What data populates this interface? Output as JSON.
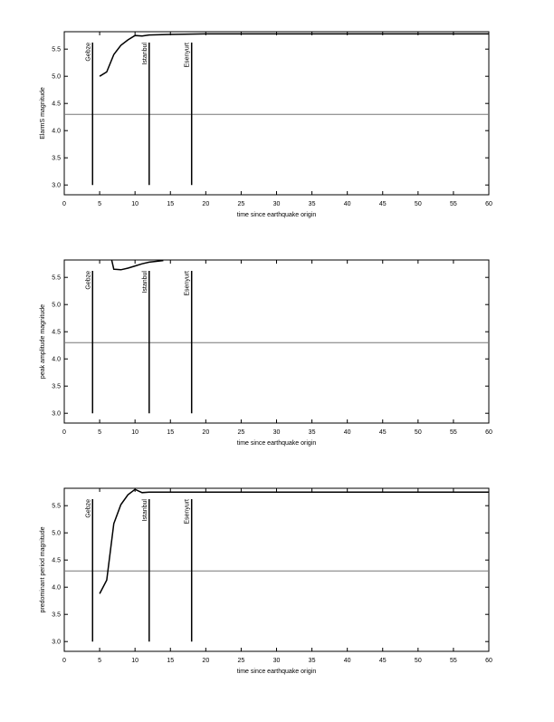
{
  "chart_data": [
    {
      "type": "line",
      "x_label": "time since earthquake origin",
      "y_label": "ElarmS magnitude",
      "xlim": [
        0,
        60
      ],
      "xticks": [
        0,
        5,
        10,
        15,
        20,
        25,
        30,
        35,
        40,
        45,
        50,
        55,
        60
      ],
      "ylim": [
        2.82,
        5.82
      ],
      "yticks": [
        {
          "value": 3,
          "label": "3.0"
        },
        3.5,
        {
          "value": 4,
          "label": "4.0"
        },
        4.5,
        {
          "value": 5,
          "label": "5.0"
        },
        5.5
      ],
      "hline": 4.3,
      "markers": [
        {
          "label": "Gebze",
          "x": 4,
          "ymin": 3,
          "ymax": 5.62
        },
        {
          "label": "Istanbul",
          "x": 12,
          "ymin": 3,
          "ymax": 5.62
        },
        {
          "label": "Esenyurt",
          "x": 18,
          "ymin": 3,
          "ymax": 5.62
        }
      ],
      "series": [
        {
          "color": "#000000",
          "x": [
            5,
            6,
            7,
            8,
            9,
            10,
            11,
            12,
            15,
            20,
            60
          ],
          "values": [
            5.0,
            5.08,
            5.4,
            5.57,
            5.67,
            5.75,
            5.74,
            5.76,
            5.77,
            5.78,
            5.78
          ]
        }
      ]
    },
    {
      "type": "line",
      "x_label": "time since earthquake origin",
      "y_label": "peak amplitude magnitude",
      "xlim": [
        0,
        60
      ],
      "xticks": [
        0,
        5,
        10,
        15,
        20,
        25,
        30,
        35,
        40,
        45,
        50,
        55,
        60
      ],
      "ylim": [
        2.82,
        5.82
      ],
      "yticks": [
        {
          "value": 3,
          "label": "3.0"
        },
        3.5,
        {
          "value": 4,
          "label": "4.0"
        },
        4.5,
        {
          "value": 5,
          "label": "5.0"
        },
        5.5
      ],
      "hline": 4.3,
      "markers": [
        {
          "label": "Gebze",
          "x": 4,
          "ymin": 3,
          "ymax": 5.62
        },
        {
          "label": "Istanbul",
          "x": 12,
          "ymin": 3,
          "ymax": 5.62
        },
        {
          "label": "Esenyurt",
          "x": 18,
          "ymin": 3,
          "ymax": 5.62
        }
      ],
      "series": [
        {
          "color": "#000000",
          "x": [
            6.7,
            7,
            8,
            9,
            10,
            11,
            12,
            14
          ],
          "values": [
            5.82,
            5.65,
            5.64,
            5.67,
            5.71,
            5.75,
            5.78,
            5.81
          ]
        }
      ]
    },
    {
      "type": "line",
      "x_label": "time since earthquake origin",
      "y_label": "predominant period magnitude",
      "xlim": [
        0,
        60
      ],
      "xticks": [
        0,
        5,
        10,
        15,
        20,
        25,
        30,
        35,
        40,
        45,
        50,
        55,
        60
      ],
      "ylim": [
        2.82,
        5.82
      ],
      "yticks": [
        {
          "value": 3,
          "label": "3.0"
        },
        3.5,
        {
          "value": 4,
          "label": "4.0"
        },
        4.5,
        {
          "value": 5,
          "label": "5.0"
        },
        5.5
      ],
      "hline": 4.3,
      "markers": [
        {
          "label": "Gebze",
          "x": 4,
          "ymin": 3,
          "ymax": 5.62
        },
        {
          "label": "Istanbul",
          "x": 12,
          "ymin": 3,
          "ymax": 5.62
        },
        {
          "label": "Esenyurt",
          "x": 18,
          "ymin": 3,
          "ymax": 5.62
        }
      ],
      "series": [
        {
          "color": "#000000",
          "x": [
            5,
            6,
            7,
            8,
            9,
            10,
            11,
            12,
            60
          ],
          "values": [
            3.88,
            4.13,
            5.17,
            5.52,
            5.7,
            5.8,
            5.74,
            5.75,
            5.75
          ]
        }
      ]
    }
  ]
}
